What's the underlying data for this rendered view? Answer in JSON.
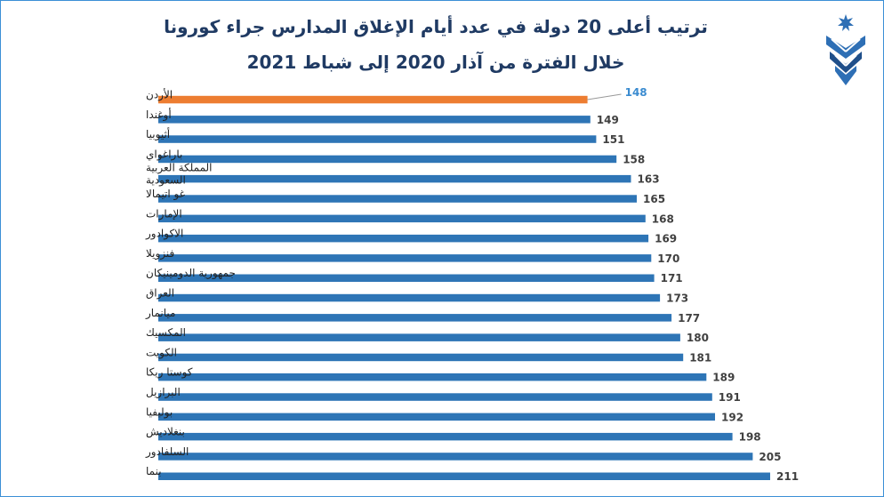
{
  "title_line1": "ترتيب أعلى 20 دولة في عدد أيام الإغلاق المدارس جراء كورونا",
  "title_line2": "خلال الفترة من آذار 2020 إلى شباط 2021",
  "logo_icon": "star-emblem-logo-icon",
  "colors": {
    "bar": "#2e75b6",
    "highlight": "#ed7d31",
    "title": "#1f3a63",
    "frame": "#3b8fd6",
    "highlight_label": "#3a8bd0"
  },
  "chart_data": {
    "type": "bar",
    "orientation": "horizontal",
    "categories": [
      "الأردن",
      "أوغندا",
      "أثيوبيا",
      "باراغواي",
      "المملكة العربية السعودية",
      "غو اتيمالا",
      "الإمارات",
      "الاكوادور",
      "فنزويلا",
      "جمهورية الدومينيكان",
      "العراق",
      "ميانمار",
      "المكسيك",
      "الكويت",
      "كوستا ريكا",
      "البرازيل",
      "بوليفيا",
      "بنغلاديش",
      "السلفادور",
      "بنما"
    ],
    "category_lines": [
      [
        "الأردن"
      ],
      [
        "أوغندا"
      ],
      [
        "أثيوبيا"
      ],
      [
        "باراغواي"
      ],
      [
        "المملكة العربية",
        "السعودية"
      ],
      [
        "غو اتيمالا"
      ],
      [
        "الإمارات"
      ],
      [
        "الاكوادور"
      ],
      [
        "فنزويلا"
      ],
      [
        "جمهورية الدومينيكان"
      ],
      [
        "العراق"
      ],
      [
        "ميانمار"
      ],
      [
        "المكسيك"
      ],
      [
        "الكويت"
      ],
      [
        "كوستا ريكا"
      ],
      [
        "البرازيل"
      ],
      [
        "بوليفيا"
      ],
      [
        "بنغلاديش"
      ],
      [
        "السلفادور"
      ],
      [
        "بنما"
      ]
    ],
    "values": [
      148,
      149,
      151,
      158,
      163,
      165,
      168,
      169,
      170,
      171,
      173,
      177,
      180,
      181,
      189,
      191,
      192,
      198,
      205,
      211
    ],
    "highlight_index": 0,
    "xlim": [
      0,
      211
    ],
    "grid": false,
    "legend": "none"
  }
}
